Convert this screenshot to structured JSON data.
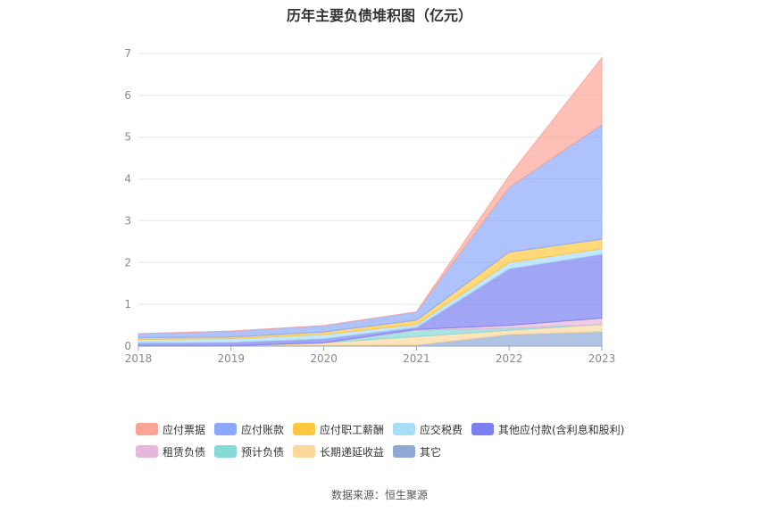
{
  "chart_data": {
    "type": "area",
    "stacked": true,
    "title": "历年主要负债堆积图（亿元）",
    "xlabel": "",
    "ylabel": "",
    "categories": [
      "2018",
      "2019",
      "2020",
      "2021",
      "2022",
      "2023"
    ],
    "ylim": [
      0,
      7
    ],
    "yticks": [
      0,
      1,
      2,
      3,
      4,
      5,
      6,
      7
    ],
    "grid": true,
    "legend_position": "bottom",
    "series": [
      {
        "name": "其它",
        "color": "#8fa9d6",
        "values": [
          0.01,
          0.01,
          0.02,
          0.03,
          0.28,
          0.35
        ]
      },
      {
        "name": "长期递延收益",
        "color": "#fcd89c",
        "values": [
          0.0,
          0.0,
          0.06,
          0.2,
          0.1,
          0.17
        ]
      },
      {
        "name": "预计负债",
        "color": "#86d9d6",
        "values": [
          0.0,
          0.0,
          0.0,
          0.15,
          0.05,
          0.0
        ]
      },
      {
        "name": "租赁负债",
        "color": "#e7b6db",
        "values": [
          0.0,
          0.0,
          0.0,
          0.02,
          0.07,
          0.15
        ]
      },
      {
        "name": "其他应付款(含利息和股利)",
        "color": "#7b7ff0",
        "values": [
          0.07,
          0.08,
          0.1,
          0.05,
          1.35,
          1.53
        ]
      },
      {
        "name": "应交税费",
        "color": "#a9defa",
        "values": [
          0.08,
          0.09,
          0.1,
          0.07,
          0.15,
          0.13
        ]
      },
      {
        "name": "应付职工薪酬",
        "color": "#fdc740",
        "values": [
          0.04,
          0.04,
          0.06,
          0.1,
          0.25,
          0.23
        ]
      },
      {
        "name": "应付账款",
        "color": "#8ca8fb",
        "values": [
          0.1,
          0.14,
          0.15,
          0.2,
          1.55,
          2.74
        ]
      },
      {
        "name": "应付票据",
        "color": "#fba597",
        "values": [
          0.0,
          0.0,
          0.0,
          0.0,
          0.28,
          1.6
        ]
      }
    ],
    "legend_order": [
      "应付票据",
      "应付账款",
      "应付职工薪酬",
      "应交税费",
      "其他应付款(含利息和股利)",
      "租赁负债",
      "预计负债",
      "长期递延收益",
      "其它"
    ]
  },
  "source_note": "数据来源：恒生聚源"
}
